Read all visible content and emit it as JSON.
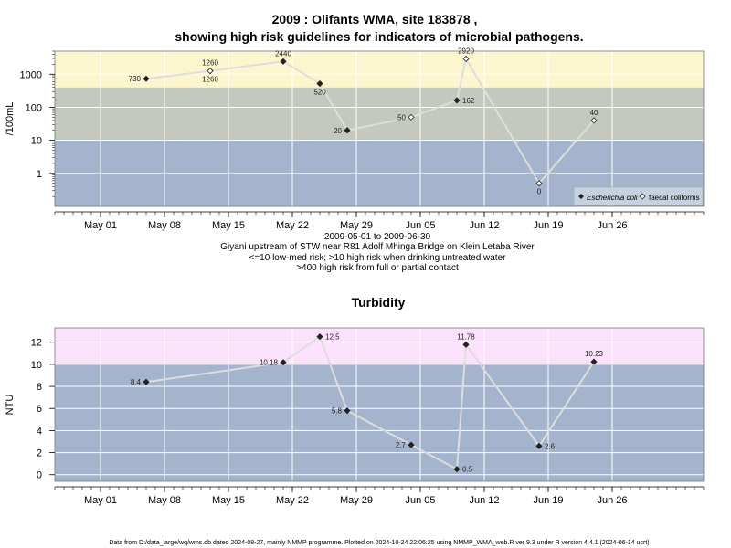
{
  "colors": {
    "band_low": "#a3b4cc",
    "band_mid": "#c4c9bf",
    "band_high_pathogen": "#fcf6cf",
    "band_high_turbidity": "#fce1fc",
    "grid": "#ffffff",
    "line": "#dddddd",
    "marker_filled": "#222222",
    "marker_open": "#ffffff"
  },
  "footer": "Data from D:/data_large/wq/wms.db dated 2024-08-27, mainly NMMP programme. Plotted on 2024-10-24 22:06:25 using NMMP_WMA_web.R ver 9.3 under R version 4.4.1 (2024-06-14 ucrt)",
  "chart_data": [
    {
      "type": "scatter",
      "title": "2009 : Olifants WMA, site 183878 ,",
      "subtitle": "showing high risk guidelines for indicators of microbial pathogens.",
      "ylabel": "/100mL",
      "yscale": "log",
      "ylim": [
        0.1,
        5000
      ],
      "yticks": [
        1,
        10,
        100,
        1000
      ],
      "ytick_labels": [
        "1",
        "10",
        "100",
        "1000"
      ],
      "xlim": [
        "2009-04-26",
        "2009-07-06"
      ],
      "xticks": [
        "2009-05-01",
        "2009-05-08",
        "2009-05-15",
        "2009-05-22",
        "2009-05-29",
        "2009-06-05",
        "2009-06-12",
        "2009-06-19",
        "2009-06-26"
      ],
      "xtick_labels": [
        "May 01",
        "May 08",
        "May 15",
        "May 22",
        "May 29",
        "Jun 05",
        "Jun 12",
        "Jun 19",
        "Jun 26"
      ],
      "bands": [
        {
          "from": 0.1,
          "to": 10,
          "color": "#a3b4cc"
        },
        {
          "from": 10,
          "to": 400,
          "color": "#c4c9bf"
        },
        {
          "from": 400,
          "to": 5000,
          "color": "#fcf6cf"
        }
      ],
      "grid": true,
      "legend_position": "bottom-right",
      "series": [
        {
          "name": "Escherichia coli",
          "marker": "filled-diamond",
          "points": [
            {
              "x": "2009-05-06",
              "y": 730,
              "label": "730",
              "label_pos": "left"
            },
            {
              "x": "2009-05-13",
              "y": 1260,
              "label": "1260",
              "label_pos": "above"
            },
            {
              "x": "2009-05-21",
              "y": 2440,
              "label": "2440",
              "label_pos": "above"
            },
            {
              "x": "2009-05-25",
              "y": 520,
              "label": "520",
              "label_pos": "below"
            },
            {
              "x": "2009-05-28",
              "y": 20,
              "label": "20",
              "label_pos": "left"
            },
            {
              "x": "2009-06-09",
              "y": 162,
              "label": "162",
              "label_pos": "right"
            }
          ]
        },
        {
          "name": "faecal coliforms",
          "marker": "open-diamond",
          "points": [
            {
              "x": "2009-05-13",
              "y": 1260,
              "label": "1260",
              "label_pos": "below"
            },
            {
              "x": "2009-06-04",
              "y": 50,
              "label": "50",
              "label_pos": "left"
            },
            {
              "x": "2009-06-10",
              "y": 2920,
              "label": "2920",
              "label_pos": "above"
            },
            {
              "x": "2009-06-18",
              "y": 0.5,
              "label": "0",
              "label_pos": "below"
            },
            {
              "x": "2009-06-24",
              "y": 40,
              "label": "40",
              "label_pos": "above"
            }
          ]
        }
      ],
      "line_path": [
        {
          "x": "2009-05-06",
          "y": 730
        },
        {
          "x": "2009-05-13",
          "y": 1260
        },
        {
          "x": "2009-05-21",
          "y": 2440
        },
        {
          "x": "2009-05-25",
          "y": 520
        },
        {
          "x": "2009-05-28",
          "y": 20
        },
        {
          "x": "2009-06-04",
          "y": 50
        },
        {
          "x": "2009-06-09",
          "y": 162
        },
        {
          "x": "2009-06-10",
          "y": 2920
        },
        {
          "x": "2009-06-18",
          "y": 0.5
        },
        {
          "x": "2009-06-24",
          "y": 40
        }
      ],
      "captions": [
        "2009-05-01 to 2009-06-30",
        "Giyani upstream of STW near R81 Adolf Mhinga Bridge on Klein Letaba River",
        "<=10 low-med risk; >10 high risk when drinking untreated water",
        ">400 high risk from full or partial contact"
      ]
    },
    {
      "type": "scatter",
      "title": "Turbidity",
      "ylabel": "NTU",
      "ylim": [
        -0.6,
        13.3
      ],
      "yticks": [
        0,
        2,
        4,
        6,
        8,
        10,
        12
      ],
      "ytick_labels": [
        "0",
        "2",
        "4",
        "6",
        "8",
        "10",
        "12"
      ],
      "xlim": [
        "2009-04-26",
        "2009-07-06"
      ],
      "xticks": [
        "2009-05-01",
        "2009-05-08",
        "2009-05-15",
        "2009-05-22",
        "2009-05-29",
        "2009-06-05",
        "2009-06-12",
        "2009-06-19",
        "2009-06-26"
      ],
      "xtick_labels": [
        "May 01",
        "May 08",
        "May 15",
        "May 22",
        "May 29",
        "Jun 05",
        "Jun 12",
        "Jun 19",
        "Jun 26"
      ],
      "bands": [
        {
          "from": -0.6,
          "to": 10,
          "color": "#a3b4cc"
        },
        {
          "from": 10,
          "to": 13.3,
          "color": "#fce1fc"
        }
      ],
      "grid": true,
      "series": [
        {
          "marker": "filled-diamond",
          "points": [
            {
              "x": "2009-05-06",
              "y": 8.4,
              "label": "8.4",
              "label_pos": "left"
            },
            {
              "x": "2009-05-21",
              "y": 10.18,
              "label": "10.18",
              "label_pos": "left"
            },
            {
              "x": "2009-05-25",
              "y": 12.5,
              "label": "12.5",
              "label_pos": "right"
            },
            {
              "x": "2009-05-28",
              "y": 5.8,
              "label": "5.8",
              "label_pos": "left"
            },
            {
              "x": "2009-06-04",
              "y": 2.7,
              "label": "2.7",
              "label_pos": "left"
            },
            {
              "x": "2009-06-09",
              "y": 0.5,
              "label": "0.5",
              "label_pos": "right"
            },
            {
              "x": "2009-06-10",
              "y": 11.78,
              "label": "11.78",
              "label_pos": "above"
            },
            {
              "x": "2009-06-18",
              "y": 2.6,
              "label": "2.6",
              "label_pos": "right"
            },
            {
              "x": "2009-06-24",
              "y": 10.23,
              "label": "10.23",
              "label_pos": "above"
            }
          ]
        }
      ]
    }
  ]
}
